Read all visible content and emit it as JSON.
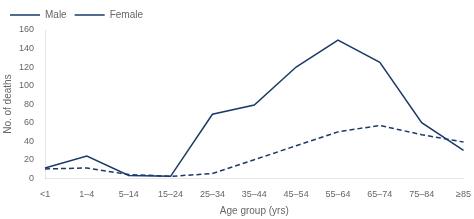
{
  "chart_data": {
    "type": "line",
    "xlabel": "Age group (yrs)",
    "ylabel": "No. of deaths",
    "categories": [
      "<1",
      "1–4",
      "5–14",
      "15–24",
      "25–34",
      "35–44",
      "45–54",
      "55–64",
      "65–74",
      "75–84",
      "≥85"
    ],
    "series": [
      {
        "name": "Male",
        "color": "#1a3a6e",
        "line_style": "solid",
        "values": [
          11,
          24,
          3,
          2,
          69,
          79,
          120,
          149,
          125,
          60,
          30
        ]
      },
      {
        "name": "Female",
        "color": "#1a3a6e",
        "line_style": "dashed",
        "values": [
          10,
          11,
          4,
          2,
          5,
          20,
          35,
          50,
          57,
          47,
          39
        ]
      }
    ],
    "ylim": [
      0,
      160
    ],
    "yticks": [
      0,
      20,
      40,
      60,
      80,
      100,
      120,
      140,
      160
    ],
    "grid": false,
    "legend": "upper left"
  }
}
